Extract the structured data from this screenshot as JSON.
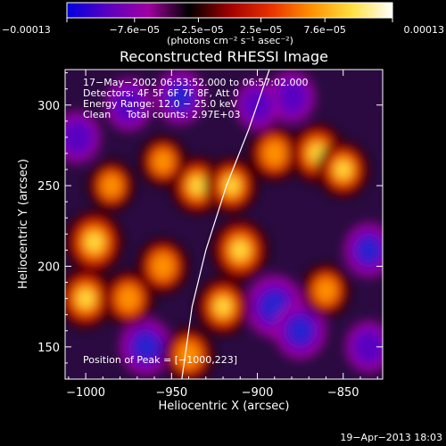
{
  "chart_data": {
    "type": "heatmap",
    "title": "Reconstructed RHESSI Image",
    "xlabel": "Heliocentric X (arcsec)",
    "ylabel": "Heliocentric Y (arcsec)",
    "xlim": [
      -1012,
      -827
    ],
    "ylim": [
      130,
      322
    ],
    "xticks": [
      -1000,
      -950,
      -900,
      -850
    ],
    "xtick_labels": [
      "−1000",
      "−950",
      "−900",
      "−850"
    ],
    "yticks": [
      150,
      200,
      250,
      300
    ],
    "ytick_labels": [
      "150",
      "200",
      "250",
      "300"
    ],
    "colorbar": {
      "range": [
        -0.00013,
        0.00013
      ],
      "ticks": [
        -0.00013,
        -7.6e-05,
        -2.5e-05,
        2.5e-05,
        7.6e-05,
        0.00013
      ],
      "tick_labels": [
        "−0.00013",
        "−7.6e−05",
        "−2.5e−05",
        "2.5e−05",
        "7.6e−05",
        "0.00013"
      ],
      "unit_label": "(photons cm⁻² s⁻¹ asec⁻²)",
      "colors": [
        "#0000e0",
        "#5a00c0",
        "#a000a0",
        "#000000",
        "#a00000",
        "#e83000",
        "#ff9000",
        "#ffe040",
        "#ffffff"
      ]
    },
    "info_lines": [
      "17−May−2002 06:53:52.000 to 06:57:02.000",
      "Detectors: 4F 5F 6F 7F 8F, Att 0",
      "Energy Range: 12.0 − 25.0 keV",
      "Clean     Total counts: 2.97E+03"
    ],
    "peak_label": "Position of Peak = [−1000,223]",
    "limb_curve": [
      [
        -944,
        130
      ],
      [
        -938,
        175
      ],
      [
        -930,
        210
      ],
      [
        -918,
        250
      ],
      [
        -905,
        285
      ],
      [
        -893,
        322
      ]
    ],
    "hot_spots": [
      {
        "x": -995,
        "y": 215,
        "level": 1.0
      },
      {
        "x": -1000,
        "y": 180,
        "level": 0.9
      },
      {
        "x": -975,
        "y": 180,
        "level": 0.7
      },
      {
        "x": -955,
        "y": 200,
        "level": 0.7
      },
      {
        "x": -935,
        "y": 250,
        "level": 0.8
      },
      {
        "x": -910,
        "y": 210,
        "level": 0.95
      },
      {
        "x": -915,
        "y": 250,
        "level": 0.75
      },
      {
        "x": -890,
        "y": 270,
        "level": 0.7
      },
      {
        "x": -865,
        "y": 270,
        "level": 0.9
      },
      {
        "x": -850,
        "y": 260,
        "level": 0.75
      },
      {
        "x": -860,
        "y": 185,
        "level": 0.6
      },
      {
        "x": -940,
        "y": 145,
        "level": 0.7
      },
      {
        "x": -920,
        "y": 175,
        "level": 0.8
      },
      {
        "x": -985,
        "y": 250,
        "level": 0.5
      },
      {
        "x": -955,
        "y": 265,
        "level": 0.5
      }
    ],
    "cold_spots": [
      {
        "x": -890,
        "y": 175,
        "level": -1.0
      },
      {
        "x": -875,
        "y": 160,
        "level": -0.8
      },
      {
        "x": -965,
        "y": 150,
        "level": -0.8
      },
      {
        "x": -975,
        "y": 300,
        "level": -0.6
      },
      {
        "x": -945,
        "y": 305,
        "level": -0.7
      },
      {
        "x": -880,
        "y": 305,
        "level": -0.6
      },
      {
        "x": -900,
        "y": 300,
        "level": -0.5
      },
      {
        "x": -1005,
        "y": 280,
        "level": -0.6
      },
      {
        "x": -835,
        "y": 210,
        "level": -0.7
      },
      {
        "x": -835,
        "y": 150,
        "level": -0.6
      }
    ]
  },
  "footer_date": "19−Apr−2013 18:03"
}
